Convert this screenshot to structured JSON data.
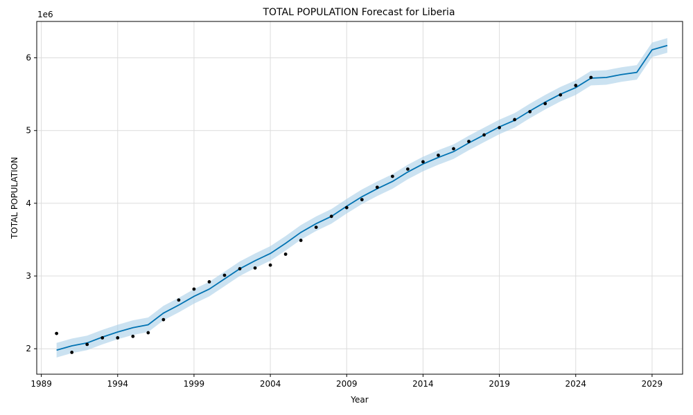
{
  "chart_data": {
    "type": "line",
    "title": "TOTAL POPULATION Forecast for Liberia",
    "xlabel": "Year",
    "ylabel": "TOTAL POPULATION",
    "y_multiplier": "1e6",
    "xlim": [
      1988.7,
      2031.0
    ],
    "ylim": [
      1.65,
      6.5
    ],
    "x_ticks": [
      1989,
      1994,
      1999,
      2004,
      2009,
      2014,
      2019,
      2024,
      2029
    ],
    "y_ticks": [
      2,
      3,
      4,
      5,
      6
    ],
    "grid": true,
    "colors": {
      "forecast": "#0072b2",
      "band": "#a9cfe8",
      "observed": "#000000"
    },
    "observed": {
      "x": [
        1990,
        1991,
        1992,
        1993,
        1994,
        1995,
        1996,
        1997,
        1998,
        1999,
        2000,
        2001,
        2002,
        2003,
        2004,
        2005,
        2006,
        2007,
        2008,
        2009,
        2010,
        2011,
        2012,
        2013,
        2014,
        2015,
        2016,
        2017,
        2018,
        2019,
        2020,
        2021,
        2022,
        2023,
        2024,
        2025
      ],
      "y": [
        2.21,
        1.95,
        2.06,
        2.15,
        2.15,
        2.17,
        2.22,
        2.4,
        2.67,
        2.82,
        2.92,
        3.01,
        3.1,
        3.11,
        3.15,
        3.3,
        3.49,
        3.67,
        3.82,
        3.94,
        4.05,
        4.22,
        4.37,
        4.47,
        4.57,
        4.66,
        4.75,
        4.85,
        4.94,
        5.04,
        5.15,
        5.26,
        5.37,
        5.49,
        5.62,
        5.73
      ]
    },
    "forecast": {
      "x": [
        1990,
        1991,
        1992,
        1993,
        1994,
        1995,
        1996,
        1997,
        1998,
        1999,
        2000,
        2001,
        2002,
        2003,
        2004,
        2005,
        2006,
        2007,
        2008,
        2009,
        2010,
        2011,
        2012,
        2013,
        2014,
        2015,
        2016,
        2017,
        2018,
        2019,
        2020,
        2021,
        2022,
        2023,
        2024,
        2025,
        2026,
        2027,
        2028,
        2029,
        2030
      ],
      "yhat": [
        1.98,
        2.04,
        2.08,
        2.16,
        2.23,
        2.29,
        2.33,
        2.49,
        2.6,
        2.72,
        2.82,
        2.96,
        3.1,
        3.21,
        3.31,
        3.45,
        3.6,
        3.72,
        3.82,
        3.96,
        4.09,
        4.2,
        4.3,
        4.43,
        4.54,
        4.63,
        4.71,
        4.83,
        4.94,
        5.05,
        5.14,
        5.27,
        5.39,
        5.5,
        5.59,
        5.72,
        5.73,
        5.77,
        5.8,
        6.11,
        6.17
      ],
      "lower": [
        1.88,
        1.94,
        1.98,
        2.06,
        2.13,
        2.19,
        2.23,
        2.39,
        2.5,
        2.62,
        2.72,
        2.86,
        3.0,
        3.11,
        3.21,
        3.35,
        3.5,
        3.62,
        3.72,
        3.86,
        3.99,
        4.1,
        4.2,
        4.33,
        4.44,
        4.53,
        4.61,
        4.73,
        4.84,
        4.95,
        5.04,
        5.17,
        5.29,
        5.4,
        5.49,
        5.62,
        5.63,
        5.67,
        5.7,
        6.01,
        6.07
      ],
      "upper": [
        2.08,
        2.14,
        2.18,
        2.26,
        2.33,
        2.39,
        2.43,
        2.59,
        2.7,
        2.82,
        2.92,
        3.06,
        3.2,
        3.31,
        3.41,
        3.55,
        3.7,
        3.82,
        3.92,
        4.06,
        4.19,
        4.3,
        4.4,
        4.53,
        4.64,
        4.73,
        4.81,
        4.93,
        5.04,
        5.15,
        5.24,
        5.37,
        5.49,
        5.6,
        5.69,
        5.82,
        5.83,
        5.87,
        5.9,
        6.21,
        6.27
      ]
    }
  }
}
